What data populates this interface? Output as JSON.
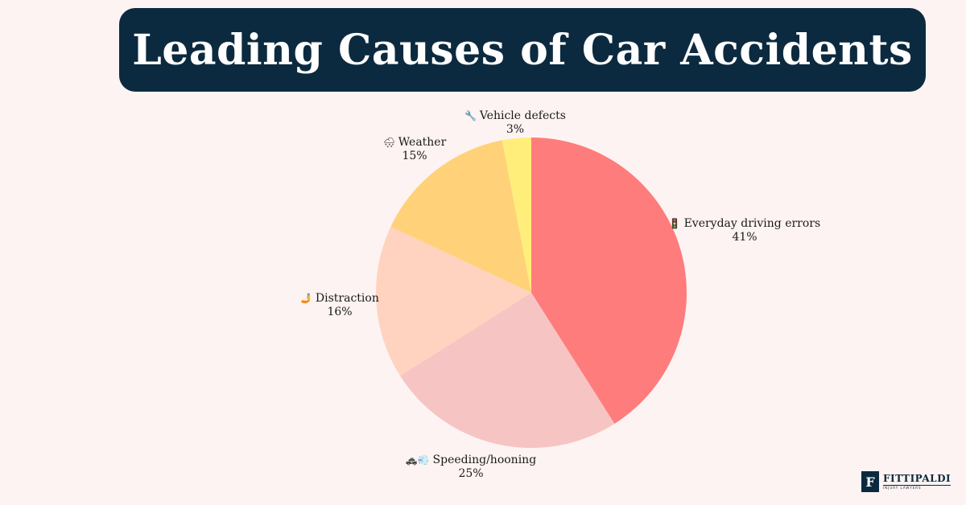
{
  "chart_data": {
    "type": "pie",
    "title": "Leading Causes of Car Accidents",
    "slices": [
      {
        "label": "Everyday driving errors",
        "icon": "traffic-light-icon",
        "icon_glyph": "🚦",
        "value": 41,
        "value_label": "41%",
        "color": "#ff7c7c"
      },
      {
        "label": "Speeding/hooning",
        "icon": "speeding-car-icon",
        "icon_glyph": "🚓💨",
        "value": 25,
        "value_label": "25%",
        "color": "#f7c4c4"
      },
      {
        "label": "Distraction",
        "icon": "phone-in-hand-icon",
        "icon_glyph": "🤳",
        "value": 16,
        "value_label": "16%",
        "color": "#ffd3bf"
      },
      {
        "label": "Weather",
        "icon": "snow-cloud-icon",
        "icon_glyph": "🌨",
        "value": 15,
        "value_label": "15%",
        "color": "#ffd27a"
      },
      {
        "label": "Vehicle defects",
        "icon": "wrench-icon",
        "icon_glyph": "🔧",
        "value": 3,
        "value_label": "3%",
        "color": "#ffef7a"
      }
    ]
  },
  "brand": {
    "mark": "F",
    "name": "FITTIPALDI",
    "tagline": "INJURY LAWYERS"
  }
}
